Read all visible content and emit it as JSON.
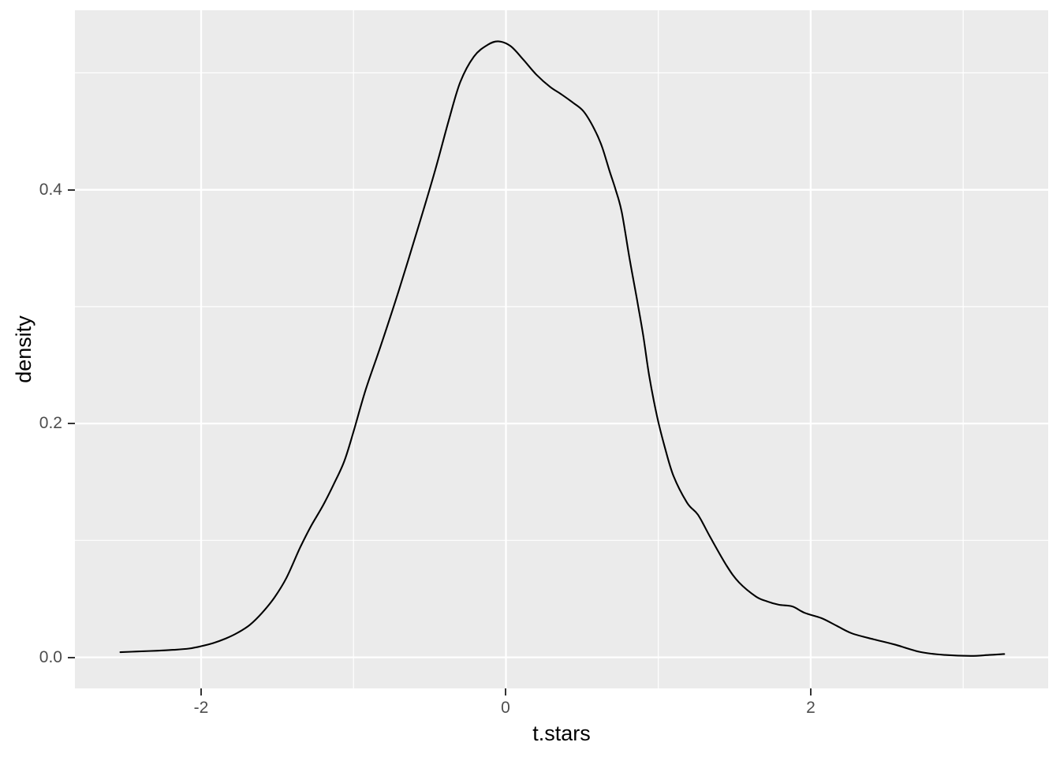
{
  "chart_data": {
    "type": "line",
    "subtype": "kernel-density-curve",
    "title": "",
    "xlabel": "t.stars",
    "ylabel": "density",
    "x_domain": [
      -2.828,
      3.558
    ],
    "y_domain": [
      -0.0266,
      0.5536
    ],
    "x_major_ticks": [
      {
        "value": -2,
        "label": "-2"
      },
      {
        "value": 0,
        "label": "0"
      },
      {
        "value": 2,
        "label": "2"
      }
    ],
    "x_minor_ticks": [
      -1,
      1,
      3
    ],
    "y_major_ticks": [
      {
        "value": 0.0,
        "label": "0.0"
      },
      {
        "value": 0.2,
        "label": "0.2"
      },
      {
        "value": 0.4,
        "label": "0.4"
      }
    ],
    "y_minor_ticks": [
      0.1,
      0.3,
      0.5
    ],
    "grid": true,
    "legend": "none",
    "series": [
      {
        "name": "density of t.stars",
        "points": [
          [
            -2.53,
            0.0044
          ],
          [
            -2.42,
            0.005
          ],
          [
            -2.3,
            0.0056
          ],
          [
            -2.18,
            0.0064
          ],
          [
            -2.08,
            0.0075
          ],
          [
            -2.0,
            0.0095
          ],
          [
            -1.92,
            0.0122
          ],
          [
            -1.84,
            0.016
          ],
          [
            -1.76,
            0.021
          ],
          [
            -1.68,
            0.0278
          ],
          [
            -1.6,
            0.038
          ],
          [
            -1.52,
            0.051
          ],
          [
            -1.44,
            0.068
          ],
          [
            -1.35,
            0.094
          ],
          [
            -1.28,
            0.112
          ],
          [
            -1.2,
            0.13
          ],
          [
            -1.13,
            0.148
          ],
          [
            -1.06,
            0.168
          ],
          [
            -1.0,
            0.193
          ],
          [
            -0.92,
            0.229
          ],
          [
            -0.82,
            0.267
          ],
          [
            -0.7,
            0.315
          ],
          [
            -0.58,
            0.366
          ],
          [
            -0.47,
            0.414
          ],
          [
            -0.38,
            0.457
          ],
          [
            -0.3,
            0.492
          ],
          [
            -0.21,
            0.514
          ],
          [
            -0.12,
            0.524
          ],
          [
            -0.05,
            0.527
          ],
          [
            0.03,
            0.523
          ],
          [
            0.11,
            0.512
          ],
          [
            0.2,
            0.4985
          ],
          [
            0.29,
            0.488
          ],
          [
            0.36,
            0.482
          ],
          [
            0.44,
            0.4745
          ],
          [
            0.51,
            0.467
          ],
          [
            0.58,
            0.452
          ],
          [
            0.63,
            0.437
          ],
          [
            0.68,
            0.416
          ],
          [
            0.72,
            0.4
          ],
          [
            0.76,
            0.381
          ],
          [
            0.81,
            0.342
          ],
          [
            0.86,
            0.306
          ],
          [
            0.9,
            0.276
          ],
          [
            0.94,
            0.241
          ],
          [
            0.99,
            0.207
          ],
          [
            1.04,
            0.181
          ],
          [
            1.1,
            0.155
          ],
          [
            1.19,
            0.132
          ],
          [
            1.26,
            0.122
          ],
          [
            1.34,
            0.103
          ],
          [
            1.45,
            0.078
          ],
          [
            1.53,
            0.064
          ],
          [
            1.64,
            0.052
          ],
          [
            1.71,
            0.048
          ],
          [
            1.79,
            0.045
          ],
          [
            1.88,
            0.0435
          ],
          [
            1.96,
            0.038
          ],
          [
            2.07,
            0.0335
          ],
          [
            2.17,
            0.027
          ],
          [
            2.27,
            0.0205
          ],
          [
            2.41,
            0.0155
          ],
          [
            2.55,
            0.011
          ],
          [
            2.72,
            0.0045
          ],
          [
            2.88,
            0.002
          ],
          [
            3.05,
            0.0012
          ],
          [
            3.17,
            0.002
          ],
          [
            3.27,
            0.0028
          ]
        ]
      }
    ],
    "colors": {
      "panel_background": "#EBEBEB",
      "grid_line": "#FFFFFF",
      "curve": "#000000",
      "tick_text": "#4D4D4D",
      "axis_title_text": "#000000",
      "tick_mark": "#333333",
      "page_background": "#FFFFFF"
    }
  }
}
